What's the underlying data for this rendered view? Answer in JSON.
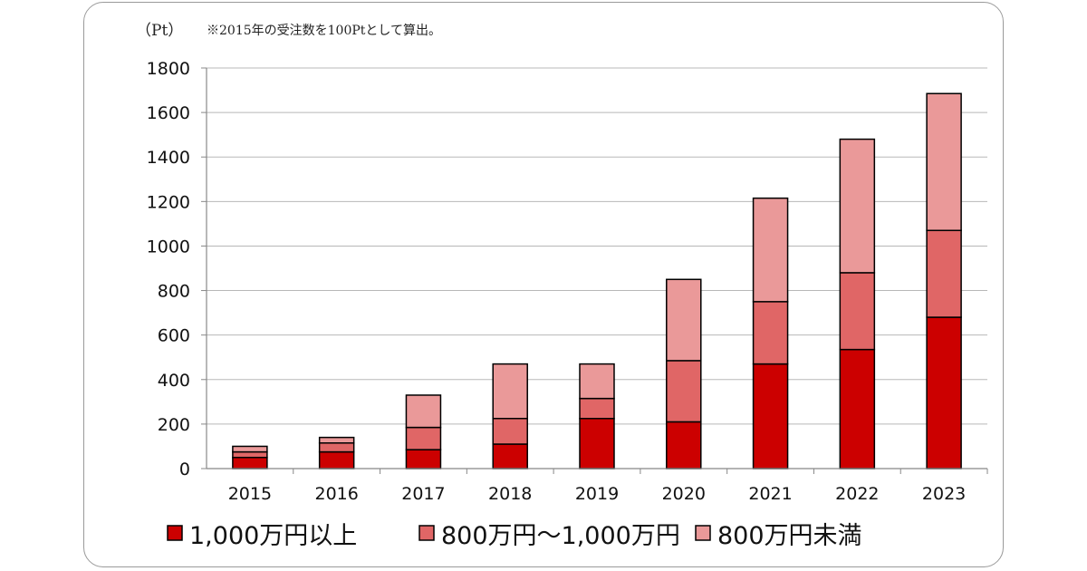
{
  "chart_data": {
    "type": "bar",
    "stacked": true,
    "unit_label": "（Pt）",
    "note": "※2015年の受注数を100Ptとして算出。",
    "categories": [
      "2015",
      "2016",
      "2017",
      "2018",
      "2019",
      "2020",
      "2021",
      "2022",
      "2023"
    ],
    "series": [
      {
        "name": "1,000万円以上",
        "color": "#cc0000",
        "values": [
          50,
          75,
          85,
          110,
          225,
          210,
          470,
          535,
          680
        ]
      },
      {
        "name": "800万円～1,000万円",
        "color": "#e06666",
        "values": [
          25,
          40,
          100,
          115,
          90,
          275,
          280,
          345,
          390
        ]
      },
      {
        "name": "800万円未満",
        "color": "#ea9999",
        "values": [
          25,
          25,
          145,
          245,
          155,
          365,
          465,
          600,
          615
        ]
      }
    ],
    "ylim": [
      0,
      1800
    ],
    "yticks": [
      "0",
      "200",
      "400",
      "600",
      "800",
      "1000",
      "1200",
      "1400",
      "1600",
      "1800"
    ],
    "grid": true,
    "legend_position": "bottom"
  }
}
